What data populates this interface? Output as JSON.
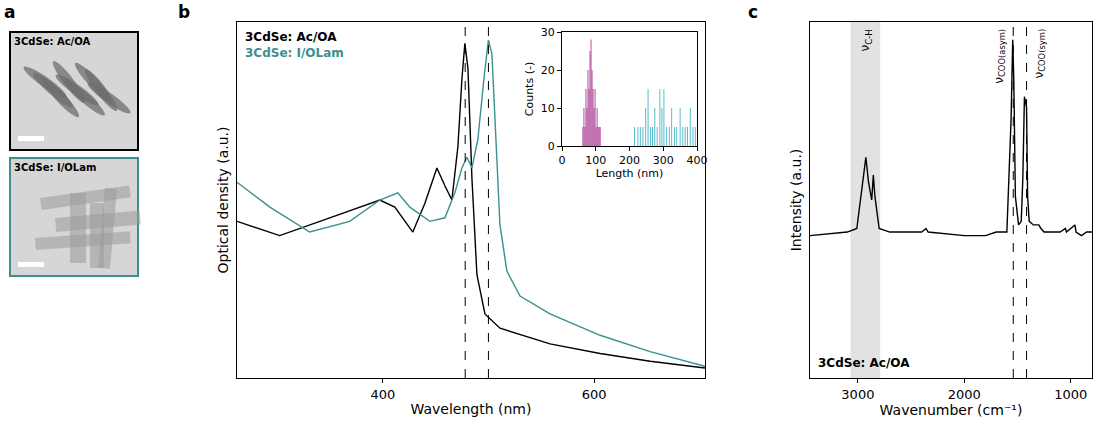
{
  "figure_a": {
    "panel": "a",
    "images": [
      {
        "label": "3CdSe: Ac/OA",
        "color": "#000000"
      },
      {
        "label": "3CdSe: I/OLam",
        "color": "#3b8f8f"
      }
    ]
  },
  "chart_data": [
    {
      "panel": "b",
      "type": "line",
      "x_label": "Wavelength (nm)",
      "y_label": "Optical density (a.u.)",
      "xlim": [
        262,
        705
      ],
      "xticks": [
        400,
        600
      ],
      "ylim": [
        0,
        1
      ],
      "tick_labels": "x",
      "vlines": [
        478,
        500
      ],
      "series": [
        {
          "name": "3CdSe: Ac/OA",
          "color": "#000000",
          "x": [
            262,
            302.4,
            349.8,
            397.2,
            411.4,
            428.4,
            439.8,
            451.2,
            458.8,
            465.4,
            471.1,
            474.9,
            477.7,
            480.6,
            484.4,
            489.1,
            496.7,
            510.9,
            558.3,
            605.7,
            653.1,
            705
          ],
          "values": [
            0.44,
            0.4,
            0.45,
            0.5,
            0.48,
            0.41,
            0.49,
            0.59,
            0.54,
            0.5,
            0.65,
            0.84,
            0.94,
            0.87,
            0.56,
            0.29,
            0.18,
            0.14,
            0.096,
            0.069,
            0.047,
            0.028
          ]
        },
        {
          "name": "3CdSe: I/OLam",
          "color": "#3b8f8f",
          "x": [
            262,
            293.1,
            330.8,
            368.7,
            397.2,
            414.2,
            425.6,
            444.5,
            458.8,
            468.2,
            474.9,
            479.6,
            484.4,
            490.0,
            495.7,
            500.0,
            503.3,
            507.1,
            510.9,
            517.5,
            529.9,
            558.3,
            605.7,
            653.1,
            705
          ],
          "values": [
            0.55,
            0.48,
            0.41,
            0.44,
            0.5,
            0.52,
            0.48,
            0.44,
            0.45,
            0.52,
            0.59,
            0.62,
            0.59,
            0.67,
            0.84,
            0.95,
            0.91,
            0.65,
            0.43,
            0.3,
            0.23,
            0.18,
            0.12,
            0.074,
            0.033
          ]
        }
      ]
    },
    {
      "type": "bar",
      "x_label": "Length (nm)",
      "y_label": "Counts (-)",
      "xlim": [
        0,
        400
      ],
      "xticks": [
        0,
        100,
        200,
        300,
        400
      ],
      "ylim": [
        0,
        30
      ],
      "yticks": [
        0,
        10,
        20,
        30
      ],
      "series": [
        {
          "color": "#a8338f",
          "x": [
            62,
            65,
            68,
            71,
            74,
            77,
            80,
            83,
            86,
            89,
            92,
            95,
            98,
            101,
            104,
            107,
            110,
            113
          ],
          "values": [
            5,
            10,
            5,
            15,
            10,
            20,
            15,
            25,
            28,
            20,
            15,
            10,
            15,
            5,
            10,
            5,
            5,
            5
          ]
        },
        {
          "color": "#3fb4c4",
          "x": [
            215,
            225,
            232,
            240,
            248,
            255,
            262,
            268,
            275,
            282,
            290,
            296,
            302,
            310,
            318,
            325,
            333,
            340,
            350,
            358,
            365,
            372,
            380,
            388,
            395
          ],
          "values": [
            5,
            5,
            5,
            5,
            10,
            15,
            5,
            5,
            10,
            5,
            15,
            10,
            15,
            5,
            5,
            10,
            5,
            5,
            10,
            5,
            5,
            5,
            10,
            5,
            5
          ]
        }
      ]
    },
    {
      "panel": "c",
      "type": "line",
      "x_label": "Wavenumber (cm⁻¹)",
      "y_label": "Intensity (a.u.)",
      "xlim": [
        3450,
        800
      ],
      "xticks": [
        3000,
        2000,
        1000
      ],
      "ylim": [
        0,
        1
      ],
      "tick_labels": "x",
      "band": [
        2790,
        3070
      ],
      "vlines": [
        1540,
        1415
      ],
      "annotations": [
        {
          "text": "ν",
          "sub": "C-H",
          "x": 2920
        },
        {
          "text": "ν",
          "sub": "COO(asym)",
          "x": 1540
        },
        {
          "text": "ν",
          "sub": "COO(sym)",
          "x": 1415
        }
      ],
      "series": [
        {
          "name": "3CdSe: Ac/OA",
          "color": "#000000",
          "x": [
            3450,
            3100,
            3010,
            2955,
            2925,
            2900,
            2870,
            2855,
            2840,
            2800,
            2700,
            2400,
            2360,
            2340,
            2000,
            1800,
            1700,
            1600,
            1560,
            1545,
            1535,
            1520,
            1490,
            1465,
            1450,
            1435,
            1425,
            1415,
            1405,
            1390,
            1350,
            1300,
            1280,
            1250,
            1100,
            1050,
            1040,
            960,
            950,
            900,
            850,
            800
          ],
          "values": [
            0.4,
            0.41,
            0.42,
            0.54,
            0.62,
            0.55,
            0.5,
            0.57,
            0.51,
            0.42,
            0.41,
            0.41,
            0.42,
            0.41,
            0.4,
            0.4,
            0.41,
            0.41,
            0.73,
            0.95,
            0.84,
            0.51,
            0.43,
            0.44,
            0.56,
            0.79,
            0.77,
            0.76,
            0.51,
            0.44,
            0.43,
            0.43,
            0.42,
            0.41,
            0.41,
            0.42,
            0.41,
            0.43,
            0.41,
            0.4,
            0.41,
            0.41
          ]
        }
      ]
    }
  ]
}
